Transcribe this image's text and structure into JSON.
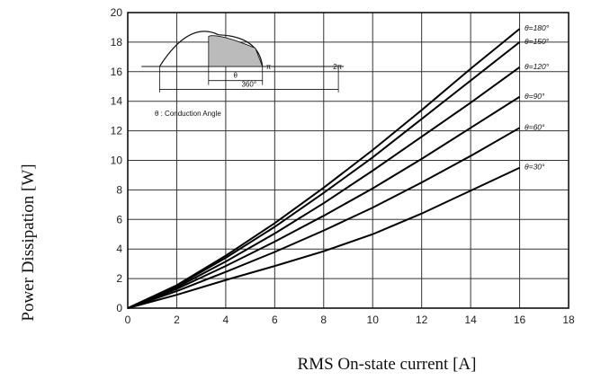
{
  "chart_data": {
    "type": "line",
    "title": "",
    "xlabel": "RMS On-state current [A]",
    "ylabel": "Power Dissipation [W]",
    "xlim": [
      0,
      18
    ],
    "ylim": [
      0,
      20
    ],
    "xticks": [
      0,
      2,
      4,
      6,
      8,
      10,
      12,
      14,
      16,
      18
    ],
    "yticks": [
      0,
      2,
      4,
      6,
      8,
      10,
      12,
      14,
      16,
      18,
      20
    ],
    "grid": true,
    "legend": "inline labels at line ends (right)",
    "line_color": "#000000",
    "series": [
      {
        "name": "θ=180°",
        "x": [
          0,
          2,
          4,
          6,
          8,
          10,
          12,
          14,
          16
        ],
        "y": [
          0,
          1.55,
          3.55,
          5.75,
          8.15,
          10.7,
          13.4,
          16.2,
          18.9
        ]
      },
      {
        "name": "θ=150°",
        "x": [
          0,
          2,
          4,
          6,
          8,
          10,
          12,
          14,
          16
        ],
        "y": [
          0,
          1.5,
          3.4,
          5.5,
          7.8,
          10.2,
          12.8,
          15.4,
          18.0
        ]
      },
      {
        "name": "θ=120°",
        "x": [
          0,
          2,
          4,
          6,
          8,
          10,
          12,
          14,
          16
        ],
        "y": [
          0,
          1.4,
          3.15,
          5.05,
          7.1,
          9.3,
          11.6,
          13.9,
          16.3
        ]
      },
      {
        "name": "θ=90°",
        "x": [
          0,
          2,
          4,
          6,
          8,
          10,
          12,
          14,
          16
        ],
        "y": [
          0,
          1.3,
          2.85,
          4.5,
          6.25,
          8.1,
          10.1,
          12.2,
          14.3
        ]
      },
      {
        "name": "θ=60°",
        "x": [
          0,
          2,
          4,
          6,
          8,
          10,
          12,
          14,
          16
        ],
        "y": [
          0,
          1.15,
          2.45,
          3.8,
          5.25,
          6.8,
          8.5,
          10.3,
          12.2
        ]
      },
      {
        "name": "θ=30°",
        "x": [
          0,
          2,
          4,
          6,
          8,
          10,
          12,
          14,
          16
        ],
        "y": [
          0,
          0.9,
          1.9,
          2.85,
          3.85,
          5.0,
          6.4,
          7.95,
          9.5
        ]
      }
    ],
    "inset": {
      "angle_label": "θ",
      "pi_label": "π",
      "two_pi_label": "2π",
      "period_label": "360°",
      "caption": "θ : Conduction Angle"
    }
  }
}
